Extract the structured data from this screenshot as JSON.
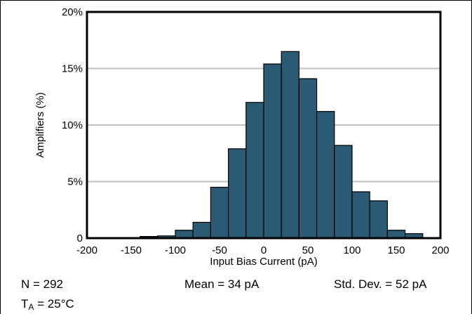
{
  "chart_data": {
    "type": "bar",
    "title": "",
    "xlabel": "Input Bias Current (pA)",
    "ylabel": "Amplifiers (%)",
    "xlim": [
      -200,
      200
    ],
    "ylim": [
      0,
      20
    ],
    "x_ticks": [
      "-200",
      "-150",
      "-100",
      "-50",
      "0",
      "50",
      "100",
      "150",
      "200"
    ],
    "y_ticks": [
      "0",
      "5%",
      "10%",
      "15%",
      "20%"
    ],
    "bin_width": 20,
    "bins": [
      {
        "start": -200,
        "end": -180,
        "value": 0.05
      },
      {
        "start": -180,
        "end": -160,
        "value": 0.05
      },
      {
        "start": -160,
        "end": -140,
        "value": 0.05
      },
      {
        "start": -140,
        "end": -120,
        "value": 0.15
      },
      {
        "start": -120,
        "end": -100,
        "value": 0.2
      },
      {
        "start": -100,
        "end": -80,
        "value": 0.7
      },
      {
        "start": -80,
        "end": -60,
        "value": 1.4
      },
      {
        "start": -60,
        "end": -40,
        "value": 4.5
      },
      {
        "start": -40,
        "end": -20,
        "value": 7.9
      },
      {
        "start": -20,
        "end": 0,
        "value": 12.0
      },
      {
        "start": 0,
        "end": 20,
        "value": 15.4
      },
      {
        "start": 20,
        "end": 40,
        "value": 16.5
      },
      {
        "start": 40,
        "end": 60,
        "value": 14.1
      },
      {
        "start": 60,
        "end": 80,
        "value": 11.2
      },
      {
        "start": 80,
        "end": 100,
        "value": 8.2
      },
      {
        "start": 100,
        "end": 120,
        "value": 4.1
      },
      {
        "start": 120,
        "end": 140,
        "value": 3.3
      },
      {
        "start": 140,
        "end": 160,
        "value": 0.7
      },
      {
        "start": 160,
        "end": 180,
        "value": 0.4
      },
      {
        "start": 180,
        "end": 200,
        "value": 0.0
      }
    ],
    "grid": true,
    "bar_color": "#2b5a74"
  },
  "stats": {
    "n": "N = 292",
    "mean": "Mean = 34 pA",
    "std": "Std. Dev. = 52 pA",
    "ta_main": "T",
    "ta_sub": "A",
    "ta_value": " = 25°C"
  }
}
